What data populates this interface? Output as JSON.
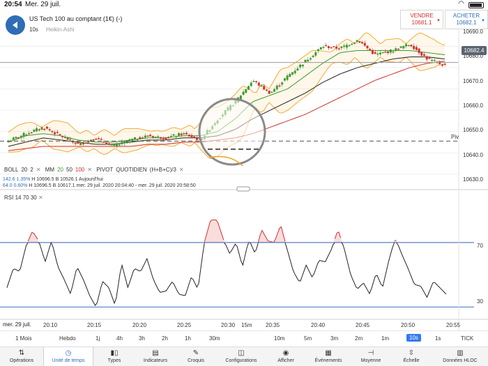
{
  "status_bar": {
    "time": "20:54",
    "date": "Mer. 29 juil."
  },
  "header": {
    "instrument": "US Tech 100 au comptant (1€) (-)",
    "interval": "10s",
    "chart_type": "Heikin-Ashi"
  },
  "trade": {
    "sell_label": "VENDRE",
    "sell_price": "10681.1",
    "buy_label": "ACHETER",
    "buy_price": "10682.1"
  },
  "price_axis": [
    "10690.0",
    "10680.0",
    "10670.0",
    "10660.0",
    "10650.0",
    "10640.0",
    "10630.0"
  ],
  "current_price": "10682.4",
  "pivot_label": "Piv",
  "legend": {
    "boll": "BOLL",
    "boll_p1": "20",
    "boll_p2": "2",
    "mm": "MM",
    "mm_p1": "20",
    "mm_p2": "50",
    "mm_p3": "100",
    "pivot": "PIVOT",
    "pivot_period": "QUOTIDIEN",
    "pivot_formula": "(H+B+C)/3"
  },
  "info": {
    "row1_change": "142.6",
    "row1_pct": "1.35%",
    "row1_high": "H 10696.5",
    "row1_low": "B 10526.1",
    "row1_label": "Aujourd'hui",
    "row2_change": "64.0",
    "row2_pct": "0.60%",
    "row2_high": "H 10696.5",
    "row2_low": "B 10617.1",
    "row2_range": "mer. 29 juil. 2020 20:04:40 - mer. 29 juil. 2020 20:58:50"
  },
  "rsi_legend": {
    "name": "RSI",
    "p1": "14",
    "p2": "70",
    "p3": "30"
  },
  "rsi_axis": [
    "70",
    "30"
  ],
  "x_axis": {
    "date": "mer. 29 juil.",
    "ticks": [
      "20:10",
      "20:15",
      "20:20",
      "20:25",
      "20:30",
      "15m",
      "20:35",
      "20:40",
      "20:45",
      "20:50",
      "20:55"
    ]
  },
  "timeframes": [
    "1 Mois",
    "Hebdo",
    "1j",
    "4h",
    "3h",
    "2h",
    "1h",
    "30m",
    "10m",
    "5m",
    "3m",
    "2m",
    "1m",
    "10s",
    "1s",
    "TICK"
  ],
  "active_timeframe": "10s",
  "toolbar": [
    {
      "label": "Opérations",
      "icon": "transfer-arrows-icon"
    },
    {
      "label": "Unité de temps",
      "icon": "clock-icon"
    },
    {
      "label": "Types",
      "icon": "candles-icon"
    },
    {
      "label": "Indicateurs",
      "icon": "indicators-icon"
    },
    {
      "label": "Croquis",
      "icon": "pencil-icon"
    },
    {
      "label": "Configurations",
      "icon": "layout-icon"
    },
    {
      "label": "Afficher",
      "icon": "eye-icon"
    },
    {
      "label": "Événements",
      "icon": "calendar-icon"
    },
    {
      "label": "Moyenne",
      "icon": "average-icon"
    },
    {
      "label": "Échelle",
      "icon": "scale-icon"
    },
    {
      "label": "Données HLOC",
      "icon": "data-grid-icon"
    }
  ],
  "active_toolbar": "Unité de temps",
  "colors": {
    "accent": "#2f6db5",
    "sell": "#d23030",
    "buy": "#2f6db5",
    "candle_up": "#3c9a2e",
    "candle_down": "#d23030",
    "boll": "#f0a21c",
    "mm20": "#3c9a2e",
    "mm50": "#222222",
    "mm100": "#d23030",
    "rsi_line": "#222222",
    "rsi_band": "#5b7fc4"
  },
  "chart_data": {
    "type": "line",
    "title": "US Tech 100 au comptant (1€) (-)",
    "xlabel": "",
    "ylabel": "",
    "x_range": [
      "20:08",
      "20:56"
    ],
    "ylim": [
      10626,
      10696
    ],
    "pivot": 10645.5,
    "candles_close": [
      10645.5,
      10649,
      10652,
      10648,
      10644,
      10647,
      10643,
      10646,
      10648,
      10647,
      10649,
      10646,
      10656,
      10664,
      10674,
      10668,
      10676,
      10683,
      10690,
      10689,
      10693,
      10686,
      10688,
      10691,
      10684,
      10681
    ],
    "series": [
      {
        "name": "MM 20",
        "values": [
          10645,
          10648,
          10649,
          10648,
          10646,
          10645,
          10645,
          10646,
          10647,
          10647,
          10648,
          10648,
          10650,
          10656,
          10664,
          10667,
          10670,
          10676,
          10682,
          10687,
          10688,
          10688,
          10688,
          10688,
          10687,
          10686
        ]
      },
      {
        "name": "MM 50",
        "values": [
          10643,
          10645,
          10647,
          10646,
          10645,
          10644,
          10644,
          10645,
          10646,
          10646,
          10647,
          10647,
          10648,
          10651,
          10656,
          10660,
          10664,
          10668,
          10673,
          10677,
          10680,
          10682,
          10684,
          10685,
          10685,
          10684
        ]
      },
      {
        "name": "MM 100",
        "values": [
          10641,
          10642,
          10643,
          10643,
          10643,
          10643,
          10643,
          10643,
          10644,
          10644,
          10645,
          10645,
          10646,
          10647,
          10649,
          10652,
          10655,
          10658,
          10662,
          10666,
          10670,
          10674,
          10677,
          10680,
          10682,
          10683
        ]
      }
    ],
    "rsi": {
      "ylim": [
        25,
        95
      ],
      "levels": [
        70,
        30
      ],
      "values": [
        42,
        54,
        52,
        68,
        77,
        71,
        58,
        71,
        55,
        47,
        38,
        55,
        47,
        37,
        30,
        46,
        42,
        31,
        57,
        42,
        54,
        52,
        60,
        47,
        39,
        40,
        46,
        38,
        37,
        49,
        41,
        70,
        84,
        84,
        72,
        63,
        70,
        55,
        72,
        63,
        78,
        71,
        70,
        81,
        66,
        52,
        45,
        56,
        48,
        59,
        58,
        66,
        78,
        66,
        50,
        41,
        45,
        38,
        51,
        42,
        59,
        73,
        63,
        54,
        44,
        43,
        36,
        46,
        42,
        38
      ]
    }
  }
}
